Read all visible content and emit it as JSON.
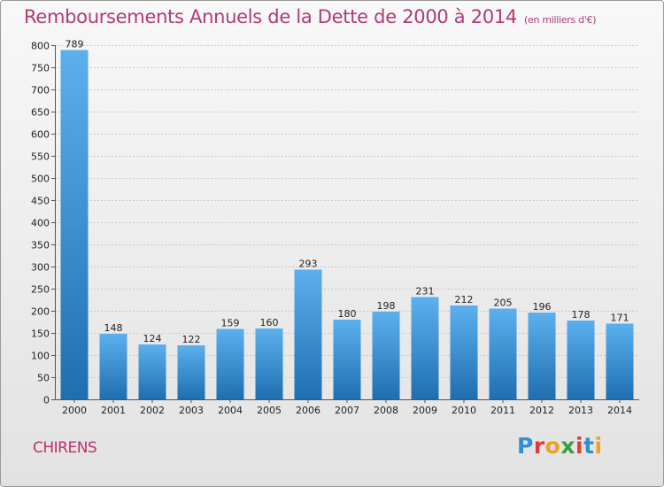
{
  "header": {
    "title": "Remboursements Annuels de la Dette de 2000 à 2014",
    "subtitle": "(en milliers d'€)"
  },
  "footer": {
    "commune": "CHIRENS",
    "logo_text": "Proxiti",
    "logo_colors": [
      "#2f8fd0",
      "#e23a3a",
      "#f0a020",
      "#3aa03a",
      "#e23a3a",
      "#2f8fd0",
      "#f0a020"
    ]
  },
  "colors": {
    "bar_top": "#5cb0ee",
    "bar_bottom": "#1f6fb0",
    "grid": "#c9c9c9",
    "title": "#b03a78"
  },
  "chart_data": {
    "type": "bar",
    "title": "Remboursements Annuels de la Dette de 2000 à 2014",
    "subtitle": "(en milliers d'€)",
    "categories": [
      "2000",
      "2001",
      "2002",
      "2003",
      "2004",
      "2005",
      "2006",
      "2007",
      "2008",
      "2009",
      "2010",
      "2011",
      "2012",
      "2013",
      "2014"
    ],
    "values": [
      789,
      148,
      124,
      122,
      159,
      160,
      293,
      180,
      198,
      231,
      212,
      205,
      196,
      178,
      171
    ],
    "ylim": [
      0,
      800
    ],
    "yticks": [
      0,
      50,
      100,
      150,
      200,
      250,
      300,
      350,
      400,
      450,
      500,
      550,
      600,
      650,
      700,
      750,
      800
    ],
    "grid": true,
    "data_labels": true
  }
}
